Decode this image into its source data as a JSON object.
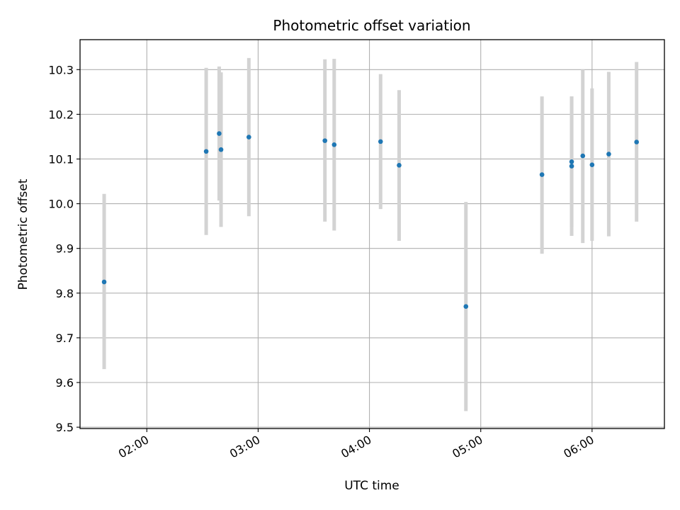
{
  "chart_data": {
    "type": "scatter",
    "title": "Photometric offset variation",
    "xlabel": "UTC time",
    "ylabel": "Photometric offset",
    "xlim": [
      "01:24",
      "06:39"
    ],
    "ylim": [
      9.497,
      10.367
    ],
    "x_ticks": [
      "02:00",
      "03:00",
      "04:00",
      "05:00",
      "06:00"
    ],
    "y_ticks": [
      9.5,
      9.6,
      9.7,
      9.8,
      9.9,
      10.0,
      10.1,
      10.2,
      10.3
    ],
    "y_tick_labels": [
      "9.5",
      "9.6",
      "9.7",
      "9.8",
      "9.9",
      "10.0",
      "10.1",
      "10.2",
      "10.3"
    ],
    "grid": true,
    "point_color": "#1f77b4",
    "errorbar_color": "#d3d3d3",
    "points": [
      {
        "x": "01:37",
        "y": 9.825,
        "yerr_low": 9.63,
        "yerr_high": 10.022
      },
      {
        "x": "02:32",
        "y": 10.117,
        "yerr_low": 9.93,
        "yerr_high": 10.304
      },
      {
        "x": "02:39",
        "y": 10.157,
        "yerr_low": 10.007,
        "yerr_high": 10.307
      },
      {
        "x": "02:40",
        "y": 10.121,
        "yerr_low": 9.948,
        "yerr_high": 10.294
      },
      {
        "x": "02:55",
        "y": 10.149,
        "yerr_low": 9.972,
        "yerr_high": 10.326
      },
      {
        "x": "03:36",
        "y": 10.141,
        "yerr_low": 9.96,
        "yerr_high": 10.323
      },
      {
        "x": "03:41",
        "y": 10.132,
        "yerr_low": 9.94,
        "yerr_high": 10.324
      },
      {
        "x": "04:06",
        "y": 10.139,
        "yerr_low": 9.988,
        "yerr_high": 10.29
      },
      {
        "x": "04:16",
        "y": 10.086,
        "yerr_low": 9.917,
        "yerr_high": 10.254
      },
      {
        "x": "04:52",
        "y": 9.77,
        "yerr_low": 9.536,
        "yerr_high": 10.004
      },
      {
        "x": "05:33",
        "y": 10.065,
        "yerr_low": 9.888,
        "yerr_high": 10.24
      },
      {
        "x": "05:49",
        "y": 10.094,
        "yerr_low": 9.948,
        "yerr_high": 10.24
      },
      {
        "x": "05:49",
        "y": 10.084,
        "yerr_low": 9.928,
        "yerr_high": 10.24
      },
      {
        "x": "05:55",
        "y": 10.107,
        "yerr_low": 9.912,
        "yerr_high": 10.3
      },
      {
        "x": "06:00",
        "y": 10.087,
        "yerr_low": 9.917,
        "yerr_high": 10.258
      },
      {
        "x": "06:09",
        "y": 10.111,
        "yerr_low": 9.927,
        "yerr_high": 10.295
      },
      {
        "x": "06:24",
        "y": 10.138,
        "yerr_low": 9.96,
        "yerr_high": 10.317
      }
    ]
  }
}
